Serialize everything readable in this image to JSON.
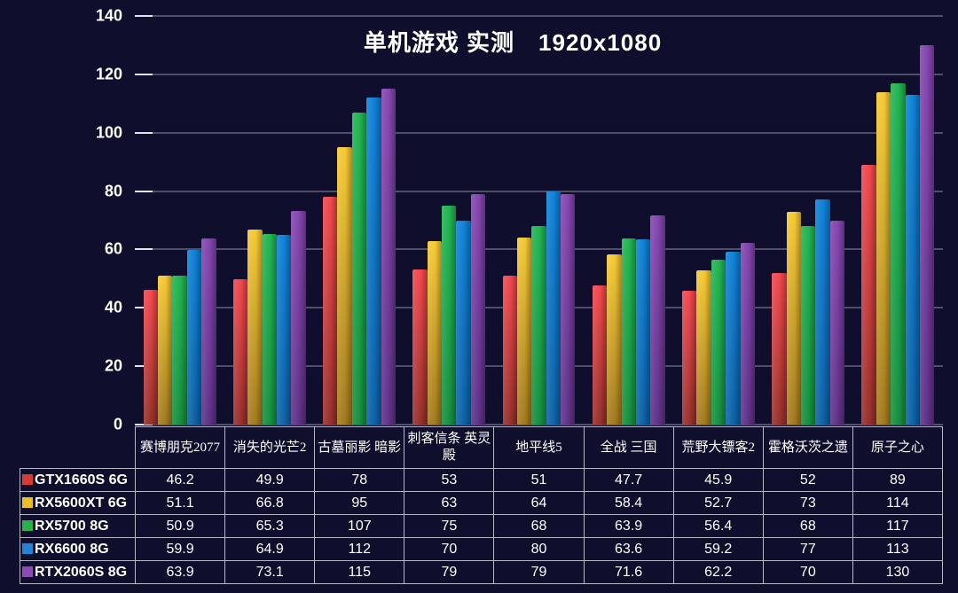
{
  "title": "单机游戏 实测　1920x1080",
  "chart_data": {
    "type": "bar",
    "title": "单机游戏 实测　1920x1080",
    "categories": [
      "赛博朋克2077",
      "消失的光芒2",
      "古墓丽影 暗影",
      "刺客信条 英灵殿",
      "地平线5",
      "全战 三国",
      "荒野大镖客2",
      "霍格沃茨之遗",
      "原子之心"
    ],
    "series": [
      {
        "name": "GTX1660S 6G",
        "swatch": "#d43c35",
        "color_top": "#f2484e",
        "color_bottom": "#96302c",
        "values": [
          46.2,
          49.9,
          78,
          53,
          51,
          47.7,
          45.9,
          52,
          89
        ]
      },
      {
        "name": "RX5600XT 6G",
        "swatch": "#e9bf29",
        "color_top": "#f6ca34",
        "color_bottom": "#a1791e",
        "values": [
          51.1,
          66.8,
          95,
          63,
          64,
          58.4,
          52.7,
          73,
          114
        ]
      },
      {
        "name": "RX5700 8G",
        "swatch": "#2cb04c",
        "color_top": "#22b552",
        "color_bottom": "#168f40",
        "values": [
          50.9,
          65.3,
          107,
          75,
          68,
          63.9,
          56.4,
          68,
          117
        ]
      },
      {
        "name": "RX6600 8G",
        "swatch": "#2583d6",
        "color_top": "#0f82d8",
        "color_bottom": "#0d62a6",
        "values": [
          59.9,
          64.9,
          112,
          70,
          80,
          63.6,
          59.2,
          77,
          113
        ]
      },
      {
        "name": "RTX2060S 8G",
        "swatch": "#8a4bb5",
        "color_top": "#8546b0",
        "color_bottom": "#5e3287",
        "values": [
          63.9,
          73.1,
          115,
          79,
          79,
          71.6,
          62.2,
          70,
          130
        ]
      }
    ],
    "ylim": [
      0,
      140
    ],
    "yticks": [
      0,
      20,
      40,
      60,
      80,
      100,
      120,
      140
    ],
    "grid": true,
    "legend_position": "table-rows-left",
    "colors": {
      "background": "#0f0f2d",
      "gridline": "#8f8fa8",
      "tick": "#e4e4ee",
      "table_border": "#b6b6c6",
      "text": "#ffffff"
    }
  }
}
